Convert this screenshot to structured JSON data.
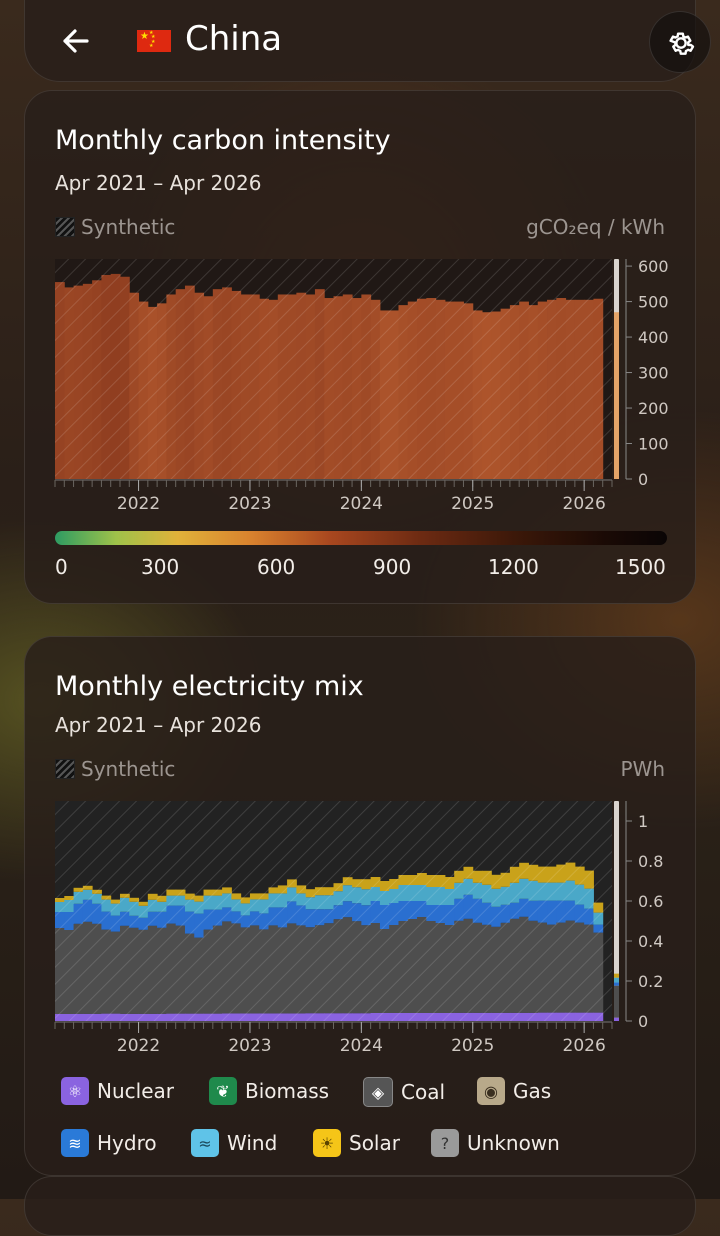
{
  "header": {
    "country": "China",
    "back_icon": "arrow-left-icon",
    "settings_icon": "gear-icon"
  },
  "carbon_card": {
    "title": "Monthly carbon intensity",
    "range": "Apr 2021 – Apr 2026",
    "synthetic_label": "Synthetic",
    "unit": "gCO₂eq / kWh",
    "colorbar_labels": [
      "0",
      "300",
      "600",
      "900",
      "1200",
      "1500"
    ],
    "colorbar_colors": [
      "#2e9b62",
      "#e0b23a",
      "#a8471f",
      "#3c1809",
      "#0a0505"
    ]
  },
  "mix_card": {
    "title": "Monthly electricity mix",
    "range": "Apr 2021 – Apr 2026",
    "synthetic_label": "Synthetic",
    "unit": "PWh",
    "legend": [
      {
        "label": "Nuclear",
        "color": "#8a63e0",
        "icon": "atom-icon"
      },
      {
        "label": "Biomass",
        "color": "#1f8a4c",
        "icon": "sprout-icon"
      },
      {
        "label": "Coal",
        "color": "#555555",
        "icon": "coal-drop-icon"
      },
      {
        "label": "Gas",
        "color": "#b8a98a",
        "icon": "flame-icon"
      },
      {
        "label": "Hydro",
        "color": "#2a7ad8",
        "icon": "waves-icon"
      },
      {
        "label": "Wind",
        "color": "#5fc3e8",
        "icon": "wind-icon"
      },
      {
        "label": "Solar",
        "color": "#f5c518",
        "icon": "sun-icon"
      },
      {
        "label": "Unknown",
        "color": "#9a9a9a",
        "icon": "question-icon"
      }
    ]
  },
  "chart_data": [
    {
      "type": "bar",
      "x_ticks": [
        "2022",
        "2023",
        "2024",
        "2025",
        "2026"
      ],
      "ylim": [
        0,
        620
      ],
      "y_ticks": [
        0,
        100,
        200,
        300,
        400,
        500,
        600
      ],
      "ylabel": "gCO₂eq / kWh",
      "series": [
        {
          "values": [
            555,
            540,
            545,
            550,
            560,
            575,
            578,
            570,
            525,
            500,
            485,
            495,
            520,
            535,
            545,
            525,
            515,
            535,
            540,
            530,
            520,
            520,
            508,
            505,
            520,
            520,
            525,
            520,
            535,
            510,
            515,
            520,
            510,
            520,
            505,
            475,
            475,
            490,
            500,
            508,
            510,
            505,
            500,
            500,
            495,
            475,
            470,
            472,
            480,
            490,
            500,
            490,
            500,
            505,
            510,
            505,
            505,
            505,
            508
          ],
          "current": 470
        }
      ]
    },
    {
      "type": "bar",
      "stacked": true,
      "x_ticks": [
        "2022",
        "2023",
        "2024",
        "2025",
        "2026"
      ],
      "ylim": [
        0,
        1.1
      ],
      "y_ticks": [
        0,
        0.2,
        0.4,
        0.6,
        0.8,
        1
      ],
      "ylabel": "PWh",
      "series": [
        {
          "name": "Nuclear",
          "values": [
            0.035,
            0.035,
            0.036,
            0.036,
            0.036,
            0.037,
            0.037,
            0.036,
            0.036,
            0.036,
            0.036,
            0.036,
            0.037,
            0.037,
            0.037,
            0.037,
            0.037,
            0.037,
            0.038,
            0.038,
            0.038,
            0.038,
            0.038,
            0.038,
            0.038,
            0.038,
            0.038,
            0.039,
            0.039,
            0.039,
            0.039,
            0.039,
            0.039,
            0.039,
            0.04,
            0.04,
            0.04,
            0.04,
            0.04,
            0.04,
            0.04,
            0.04,
            0.04,
            0.041,
            0.041,
            0.041,
            0.041,
            0.041,
            0.041,
            0.041,
            0.041,
            0.041,
            0.042,
            0.042,
            0.042,
            0.042,
            0.042,
            0.042,
            0.042
          ]
        },
        {
          "name": "Coal",
          "values": [
            0.43,
            0.42,
            0.45,
            0.46,
            0.45,
            0.42,
            0.41,
            0.44,
            0.43,
            0.42,
            0.44,
            0.43,
            0.45,
            0.44,
            0.4,
            0.38,
            0.42,
            0.44,
            0.46,
            0.45,
            0.43,
            0.44,
            0.42,
            0.44,
            0.43,
            0.45,
            0.44,
            0.43,
            0.44,
            0.45,
            0.47,
            0.48,
            0.46,
            0.44,
            0.45,
            0.42,
            0.44,
            0.46,
            0.47,
            0.48,
            0.46,
            0.45,
            0.44,
            0.46,
            0.47,
            0.45,
            0.44,
            0.43,
            0.45,
            0.47,
            0.48,
            0.46,
            0.45,
            0.44,
            0.45,
            0.46,
            0.45,
            0.44,
            0.4
          ]
        },
        {
          "name": "Hydro",
          "values": [
            0.08,
            0.09,
            0.1,
            0.11,
            0.1,
            0.09,
            0.08,
            0.07,
            0.06,
            0.06,
            0.07,
            0.08,
            0.09,
            0.1,
            0.11,
            0.12,
            0.1,
            0.08,
            0.07,
            0.06,
            0.06,
            0.07,
            0.08,
            0.09,
            0.1,
            0.11,
            0.1,
            0.09,
            0.08,
            0.07,
            0.07,
            0.08,
            0.09,
            0.1,
            0.11,
            0.12,
            0.11,
            0.1,
            0.09,
            0.08,
            0.08,
            0.09,
            0.1,
            0.11,
            0.12,
            0.12,
            0.11,
            0.1,
            0.09,
            0.08,
            0.09,
            0.1,
            0.11,
            0.12,
            0.11,
            0.1,
            0.09,
            0.08,
            0.04
          ]
        },
        {
          "name": "Wind",
          "values": [
            0.05,
            0.06,
            0.06,
            0.05,
            0.05,
            0.06,
            0.06,
            0.07,
            0.07,
            0.06,
            0.06,
            0.05,
            0.05,
            0.05,
            0.06,
            0.06,
            0.07,
            0.07,
            0.07,
            0.06,
            0.06,
            0.06,
            0.07,
            0.07,
            0.07,
            0.07,
            0.06,
            0.06,
            0.07,
            0.07,
            0.07,
            0.08,
            0.08,
            0.08,
            0.07,
            0.07,
            0.07,
            0.08,
            0.08,
            0.08,
            0.09,
            0.09,
            0.08,
            0.08,
            0.08,
            0.08,
            0.09,
            0.09,
            0.09,
            0.1,
            0.1,
            0.1,
            0.09,
            0.09,
            0.09,
            0.1,
            0.1,
            0.1,
            0.06
          ]
        },
        {
          "name": "Solar",
          "values": [
            0.02,
            0.02,
            0.02,
            0.02,
            0.02,
            0.02,
            0.02,
            0.02,
            0.02,
            0.02,
            0.03,
            0.03,
            0.03,
            0.03,
            0.03,
            0.03,
            0.03,
            0.03,
            0.03,
            0.03,
            0.03,
            0.03,
            0.03,
            0.03,
            0.04,
            0.04,
            0.04,
            0.04,
            0.04,
            0.04,
            0.04,
            0.04,
            0.04,
            0.05,
            0.05,
            0.05,
            0.05,
            0.05,
            0.05,
            0.06,
            0.06,
            0.06,
            0.06,
            0.06,
            0.06,
            0.06,
            0.07,
            0.07,
            0.07,
            0.08,
            0.08,
            0.08,
            0.08,
            0.08,
            0.09,
            0.09,
            0.09,
            0.09,
            0.05
          ]
        }
      ]
    }
  ]
}
